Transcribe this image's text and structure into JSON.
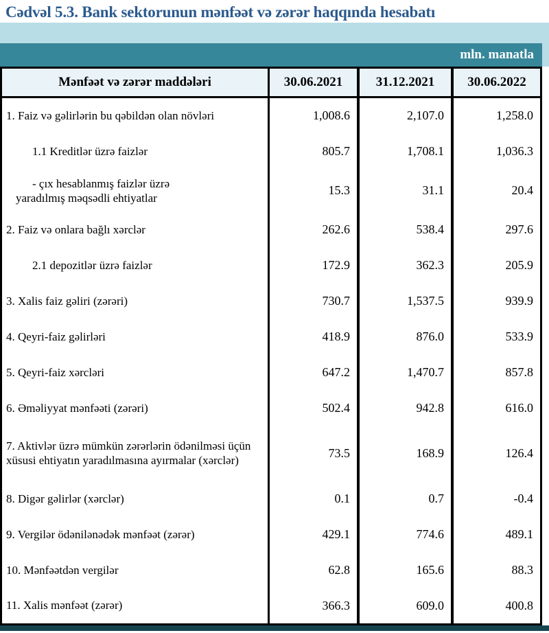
{
  "title": "Cədvəl 5.3. Bank sektorunun mənfəət və zərər haqqında hesabatı",
  "unit_label": "mln. manatla",
  "columns": [
    "Mənfəət və zərər maddələri",
    "30.06.2021",
    "31.12.2021",
    "30.06.2022"
  ],
  "rows": [
    {
      "label": "1. Faiz və gəlirlərin bu qəbildən olan növləri",
      "values": [
        "1,008.6",
        "2,107.0",
        "1,258.0"
      ]
    },
    {
      "label": "1.1 Kreditlər üzrə faizlər",
      "values": [
        "805.7",
        "1,708.1",
        "1,036.3"
      ]
    },
    {
      "label": "- çıx hesablanmış faizlər üzrə yaradılmış məqsədli ehtiyatlar",
      "values": [
        "15.3",
        "31.1",
        "20.4"
      ]
    },
    {
      "label": "2. Faiz və onlara bağlı xərclər",
      "values": [
        "262.6",
        "538.4",
        "297.6"
      ]
    },
    {
      "label": "2.1 depozitlər üzrə faizlər",
      "values": [
        "172.9",
        "362.3",
        "205.9"
      ]
    },
    {
      "label": "3. Xalis faiz gəliri (zərəri)",
      "values": [
        "730.7",
        "1,537.5",
        "939.9"
      ]
    },
    {
      "label": "4. Qeyri-faiz gəlirləri",
      "values": [
        "418.9",
        "876.0",
        "533.9"
      ]
    },
    {
      "label": "5. Qeyri-faiz xərcləri",
      "values": [
        "647.2",
        "1,470.7",
        "857.8"
      ]
    },
    {
      "label": "6. Əməliyyat mənfəəti (zərəri)",
      "values": [
        "502.4",
        "942.8",
        "616.0"
      ]
    },
    {
      "label": "7. Aktivlər üzrə mümkün zərərlərin ödənilməsi üçün xüsusi ehtiyatın yaradılmasına ayırmalar (xərclər)",
      "values": [
        "73.5",
        "168.9",
        "126.4"
      ]
    },
    {
      "label": "8. Digər gəlirlər (xərclər)",
      "values": [
        "0.1",
        "0.7",
        "-0.4"
      ]
    },
    {
      "label": "9. Vergilər ödənilənədək mənfəət (zərər)",
      "values": [
        "429.1",
        "774.6",
        "489.1"
      ]
    },
    {
      "label": "10. Mənfəətdən vergilər",
      "values": [
        "62.8",
        "165.6",
        "88.3"
      ]
    },
    {
      "label": "11. Xalis mənfəət (zərər)",
      "values": [
        "366.3",
        "609.0",
        "400.8"
      ]
    }
  ],
  "colors": {
    "title_blue": "#2b5a8e",
    "band_light_blue": "#b8dde6",
    "band_teal": "#37879a",
    "header_bg": "#e9f3f8",
    "bottom_bar": "#17454f"
  }
}
